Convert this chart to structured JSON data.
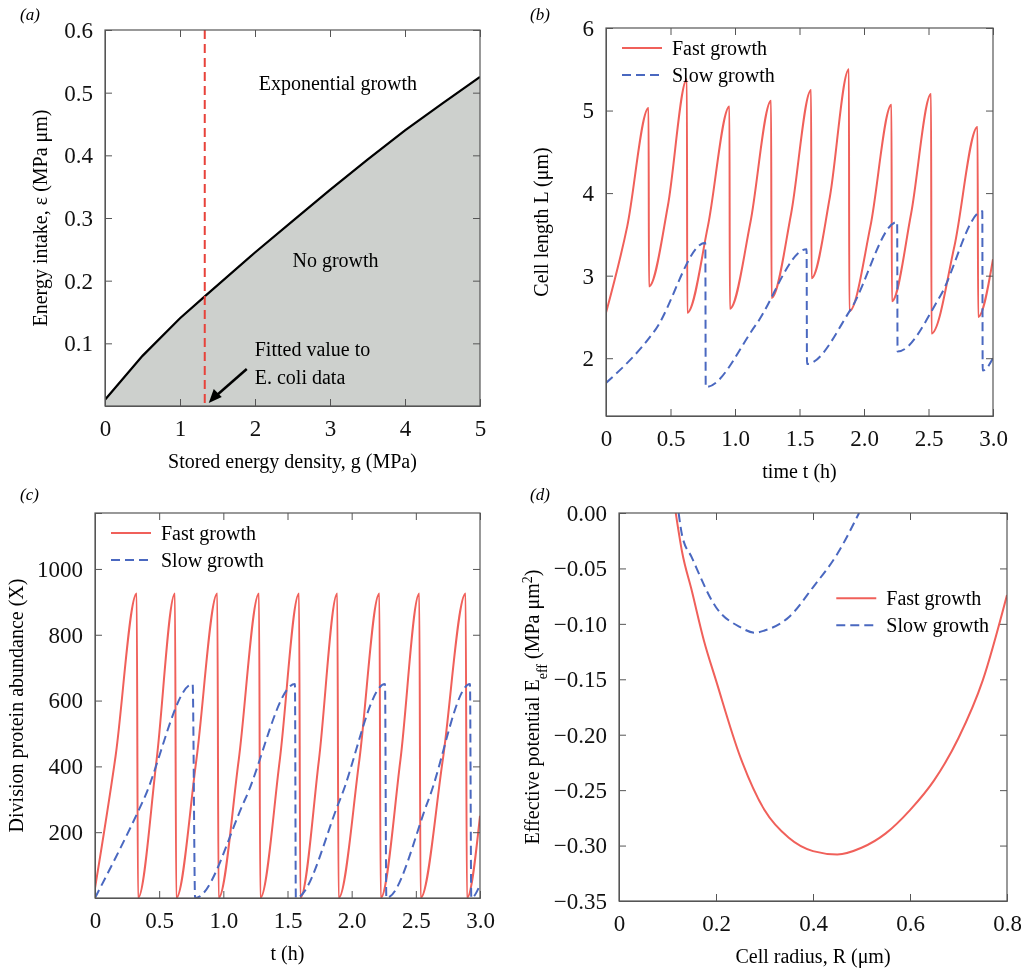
{
  "chart_data": [
    {
      "type": "area",
      "title": "(a)",
      "xlabel": "Stored energy density, g (MPa)",
      "ylabel": "Energy intake, ε (MPa μm)",
      "x": [
        0,
        0.5,
        1,
        1.33,
        2,
        2.5,
        3,
        3.5,
        4,
        4.5,
        5
      ],
      "series": [
        {
          "color": "#cdd0cd",
          "values": [
            0.01,
            0.08,
            0.14,
            0.175,
            0.245,
            0.295,
            0.345,
            0.393,
            0.44,
            0.483,
            0.525
          ]
        }
      ],
      "xlim": [
        0,
        5
      ],
      "ylim": [
        0,
        0.6
      ],
      "xticks": [
        0,
        1,
        2,
        3,
        4,
        5
      ],
      "yticks": [
        0.1,
        0.2,
        0.3,
        0.4,
        0.5,
        0.6
      ],
      "ref_lines": [
        {
          "axis": "x",
          "value": 1.33,
          "color": "#e8423a",
          "line_style": "dashed"
        }
      ],
      "annotations": [
        "Exponential growth",
        "No growth",
        {
          "text": "Fitted value to E. coli data",
          "x": 1.33,
          "y": 0
        }
      ]
    },
    {
      "type": "line",
      "title": "(b)",
      "xlabel": "time t (h)",
      "ylabel": "Cell length L (μm)",
      "series": [
        {
          "name": "Fast growth",
          "color": "#f0605a",
          "line_style": "solid",
          "x": [
            0,
            0.165,
            0.33,
            0.333,
            0.48,
            0.627,
            0.63,
            0.79,
            0.957,
            0.96,
            1.12,
            1.28,
            1.283,
            1.435,
            1.59,
            1.593,
            1.735,
            1.883,
            1.886,
            2.05,
            2.213,
            2.216,
            2.365,
            2.52,
            2.523,
            2.7,
            2.88,
            2.885,
            3.0
          ],
          "values": [
            2.55,
            3.6,
            5.03,
            2.87,
            3.85,
            5.38,
            2.55,
            3.6,
            5.05,
            2.6,
            3.65,
            5.12,
            2.73,
            3.75,
            5.25,
            2.97,
            3.95,
            5.5,
            2.57,
            3.6,
            5.07,
            2.69,
            3.75,
            5.2,
            2.3,
            3.35,
            4.8,
            2.5,
            3.2
          ]
        },
        {
          "name": "Slow growth",
          "color": "#4a68c0",
          "line_style": "dashed",
          "x": [
            0,
            0.385,
            0.77,
            0.773,
            1.16,
            1.555,
            1.558,
            1.9,
            2.257,
            2.26,
            2.59,
            2.917,
            2.92,
            3.0
          ],
          "values": [
            1.7,
            2.35,
            3.4,
            1.65,
            2.4,
            3.32,
            1.93,
            2.6,
            3.65,
            2.08,
            2.75,
            3.78,
            1.85,
            2.0
          ]
        }
      ],
      "xlim": [
        0,
        3
      ],
      "ylim": [
        1.3,
        6
      ],
      "xticks": [
        0,
        0.5,
        {
          "value": 1,
          "label": "1.0"
        },
        1.5,
        {
          "value": 2,
          "label": "2.0"
        },
        2.5,
        {
          "value": 3,
          "label": "3.0"
        }
      ],
      "yticks": [
        2,
        3,
        4,
        5,
        6
      ],
      "legend": "top left"
    },
    {
      "type": "line",
      "title": "(c)",
      "xlabel": "t (h)",
      "ylabel": "Division protein abundance (X)",
      "series": [
        {
          "name": "Fast growth",
          "color": "#f0605a",
          "line_style": "solid",
          "x": [
            0,
            0.16,
            0.325,
            0.335,
            0.48,
            0.623,
            0.633,
            0.79,
            0.953,
            0.963,
            1.12,
            1.278,
            1.288,
            1.44,
            1.59,
            1.6,
            1.745,
            1.888,
            1.898,
            2.06,
            2.216,
            2.226,
            2.38,
            2.527,
            2.537,
            2.71,
            2.888,
            2.898,
            3.0
          ],
          "values": [
            30,
            430,
            925,
            0,
            420,
            925,
            0,
            420,
            925,
            0,
            420,
            925,
            0,
            420,
            925,
            0,
            420,
            925,
            0,
            420,
            925,
            0,
            420,
            925,
            0,
            420,
            925,
            0,
            250
          ]
        },
        {
          "name": "Slow growth",
          "color": "#4a68c0",
          "line_style": "dashed",
          "x": [
            0,
            0.38,
            0.761,
            0.78,
            1.17,
            1.558,
            1.565,
            1.91,
            2.26,
            2.27,
            2.6,
            2.922,
            2.932,
            3.0
          ],
          "values": [
            0,
            300,
            650,
            0,
            300,
            650,
            0,
            300,
            650,
            0,
            300,
            650,
            0,
            40
          ]
        }
      ],
      "xlim": [
        0,
        3
      ],
      "ylim": [
        0,
        1170
      ],
      "xticks": [
        0,
        0.5,
        {
          "value": 1,
          "label": "1.0"
        },
        1.5,
        {
          "value": 2,
          "label": "2.0"
        },
        2.5,
        {
          "value": 3,
          "label": "3.0"
        }
      ],
      "yticks": [
        200,
        400,
        600,
        800,
        1000
      ],
      "legend": "top left"
    },
    {
      "type": "line",
      "title": "(d)",
      "xlabel": "Cell radius, R (μm)",
      "ylabel": "Effective potential E$_{eff}$ (MPa μm$^{2}$)",
      "series": [
        {
          "name": "Fast growth",
          "color": "#f0605a",
          "line_style": "solid",
          "x": [
            0.117,
            0.13,
            0.15,
            0.175,
            0.2,
            0.25,
            0.3,
            0.35,
            0.4,
            0.45,
            0.5,
            0.55,
            0.6,
            0.65,
            0.7,
            0.75,
            0.8
          ],
          "values": [
            0,
            -0.035,
            -0.07,
            -0.115,
            -0.151,
            -0.22,
            -0.268,
            -0.293,
            -0.305,
            -0.308,
            -0.302,
            -0.289,
            -0.268,
            -0.241,
            -0.203,
            -0.151,
            -0.074
          ]
        },
        {
          "name": "Slow growth",
          "color": "#4a68c0",
          "line_style": "dashed",
          "x": [
            0.123,
            0.13,
            0.15,
            0.2,
            0.25,
            0.28,
            0.3,
            0.35,
            0.4,
            0.45,
            0.495
          ],
          "values": [
            0,
            -0.02,
            -0.04,
            -0.085,
            -0.103,
            -0.108,
            -0.106,
            -0.094,
            -0.067,
            -0.037,
            0
          ]
        }
      ],
      "xlim": [
        0,
        0.8
      ],
      "ylim": [
        -0.35,
        0
      ],
      "xticks": [
        0,
        0.2,
        0.4,
        0.6,
        0.8
      ],
      "yticks": [
        {
          "value": -0.35,
          "label": "−0.35"
        },
        {
          "value": -0.3,
          "label": "−0.30"
        },
        {
          "value": -0.25,
          "label": "−0.25"
        },
        {
          "value": -0.2,
          "label": "−0.20"
        },
        {
          "value": -0.15,
          "label": "−0.15"
        },
        {
          "value": -0.1,
          "label": "−0.10"
        },
        {
          "value": -0.05,
          "label": "−0.05"
        },
        {
          "value": 0,
          "label": "0.00"
        }
      ],
      "legend": "right"
    }
  ]
}
